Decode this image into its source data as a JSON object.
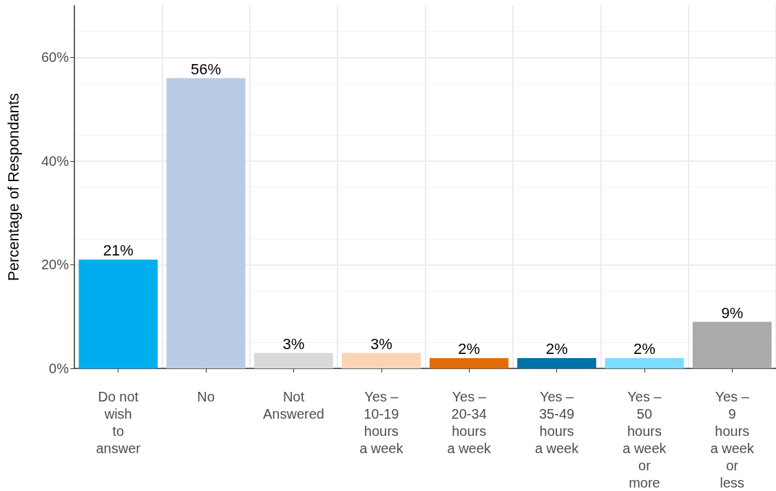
{
  "chart_data": {
    "type": "bar",
    "ylabel": "Percentage of Respondants",
    "categories": [
      "Do not wish to answer",
      "No",
      "Not Answered",
      "Yes – 10-19 hours a week",
      "Yes – 20-34 hours a week",
      "Yes – 35-49 hours a week",
      "Yes – 50 hours a week or more",
      "Yes – 9 hours a week or less"
    ],
    "values": [
      21,
      56,
      3,
      3,
      2,
      2,
      2,
      9
    ],
    "value_labels": [
      "21%",
      "56%",
      "3%",
      "3%",
      "2%",
      "2%",
      "2%",
      "9%"
    ],
    "colors": [
      "#00aeef",
      "#b8cce4",
      "#d9d9d9",
      "#fbd4b4",
      "#e36c09",
      "#0071a9",
      "#7fdbff",
      "#aaaaaa"
    ],
    "ylim": [
      0,
      70
    ],
    "yticks": [
      {
        "value": 0,
        "label": "0%"
      },
      {
        "value": 20,
        "label": "20%"
      },
      {
        "value": 40,
        "label": "40%"
      },
      {
        "value": 60,
        "label": "60%"
      }
    ],
    "grid": true
  }
}
